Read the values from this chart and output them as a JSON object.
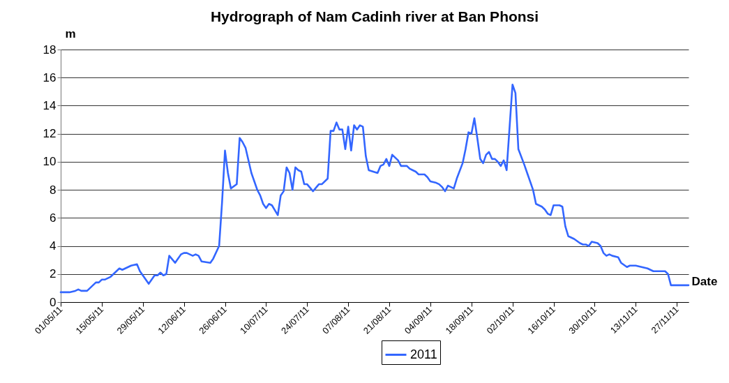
{
  "chart_data": {
    "type": "line",
    "title": "Hydrograph of Nam Cadinh river at Ban Phonsi",
    "ylabel": "m",
    "xlabel": "Date",
    "x": [
      "2011-05-01",
      "2011-05-04",
      "2011-05-06",
      "2011-05-07",
      "2011-05-08",
      "2011-05-10",
      "2011-05-11",
      "2011-05-13",
      "2011-05-14",
      "2011-05-15",
      "2011-05-16",
      "2011-05-18",
      "2011-05-19",
      "2011-05-21",
      "2011-05-22",
      "2011-05-23",
      "2011-05-25",
      "2011-05-27",
      "2011-05-28",
      "2011-05-30",
      "2011-05-31",
      "2011-06-02",
      "2011-06-03",
      "2011-06-04",
      "2011-06-05",
      "2011-06-06",
      "2011-06-07",
      "2011-06-09",
      "2011-06-11",
      "2011-06-12",
      "2011-06-13",
      "2011-06-15",
      "2011-06-16",
      "2011-06-17",
      "2011-06-18",
      "2011-06-21",
      "2011-06-22",
      "2011-06-24",
      "2011-06-25",
      "2011-06-26",
      "2011-06-27",
      "2011-06-28",
      "2011-06-30",
      "2011-07-01",
      "2011-07-02",
      "2011-07-03",
      "2011-07-05",
      "2011-07-06",
      "2011-07-07",
      "2011-07-08",
      "2011-07-09",
      "2011-07-10",
      "2011-07-11",
      "2011-07-12",
      "2011-07-14",
      "2011-07-15",
      "2011-07-16",
      "2011-07-17",
      "2011-07-18",
      "2011-07-19",
      "2011-07-20",
      "2011-07-21",
      "2011-07-22",
      "2011-07-23",
      "2011-07-24",
      "2011-07-26",
      "2011-07-28",
      "2011-07-29",
      "2011-07-31",
      "2011-08-01",
      "2011-08-02",
      "2011-08-03",
      "2011-08-04",
      "2011-08-05",
      "2011-08-06",
      "2011-08-07",
      "2011-08-08",
      "2011-08-09",
      "2011-08-10",
      "2011-08-11",
      "2011-08-12",
      "2011-08-13",
      "2011-08-14",
      "2011-08-17",
      "2011-08-18",
      "2011-08-19",
      "2011-08-20",
      "2011-08-21",
      "2011-08-22",
      "2011-08-23",
      "2011-08-24",
      "2011-08-25",
      "2011-08-26",
      "2011-08-27",
      "2011-08-28",
      "2011-08-29",
      "2011-08-30",
      "2011-08-31",
      "2011-09-02",
      "2011-09-03",
      "2011-09-04",
      "2011-09-06",
      "2011-09-07",
      "2011-09-08",
      "2011-09-09",
      "2011-09-10",
      "2011-09-11",
      "2011-09-12",
      "2011-09-13",
      "2011-09-15",
      "2011-09-16",
      "2011-09-17",
      "2011-09-18",
      "2011-09-19",
      "2011-09-20",
      "2011-09-21",
      "2011-09-22",
      "2011-09-23",
      "2011-09-24",
      "2011-09-25",
      "2011-09-26",
      "2011-09-27",
      "2011-09-28",
      "2011-09-29",
      "2011-09-30",
      "2011-10-02",
      "2011-10-03",
      "2011-10-04",
      "2011-10-06",
      "2011-10-07",
      "2011-10-09",
      "2011-10-10",
      "2011-10-12",
      "2011-10-13",
      "2011-10-14",
      "2011-10-15",
      "2011-10-16",
      "2011-10-18",
      "2011-10-19",
      "2011-10-20",
      "2011-10-21",
      "2011-10-23",
      "2011-10-25",
      "2011-10-26",
      "2011-10-27",
      "2011-10-28",
      "2011-10-29",
      "2011-10-31",
      "2011-11-01",
      "2011-11-02",
      "2011-11-03",
      "2011-11-04",
      "2011-11-05",
      "2011-11-07",
      "2011-11-08",
      "2011-11-10",
      "2011-11-11",
      "2011-11-13",
      "2011-11-15",
      "2011-11-17",
      "2011-11-19",
      "2011-11-21",
      "2011-11-23",
      "2011-11-24",
      "2011-11-25",
      "2011-11-27",
      "2011-12-01"
    ],
    "series": [
      {
        "name": "2011",
        "color": "#3366ff",
        "values": [
          0.7,
          0.7,
          0.8,
          0.9,
          0.8,
          0.8,
          1.0,
          1.4,
          1.4,
          1.6,
          1.6,
          1.8,
          2.0,
          2.4,
          2.3,
          2.4,
          2.6,
          2.7,
          2.2,
          1.6,
          1.3,
          1.9,
          1.9,
          2.1,
          1.9,
          2.0,
          3.3,
          2.8,
          3.4,
          3.5,
          3.5,
          3.3,
          3.4,
          3.3,
          2.9,
          2.8,
          3.1,
          4.0,
          7.1,
          10.8,
          9.2,
          8.1,
          8.4,
          11.7,
          11.4,
          11.0,
          9.2,
          8.6,
          8.0,
          7.6,
          7.0,
          6.7,
          7.0,
          6.9,
          6.2,
          7.6,
          7.9,
          9.6,
          9.2,
          8.0,
          9.6,
          9.4,
          9.3,
          8.4,
          8.4,
          7.9,
          8.4,
          8.4,
          8.8,
          12.2,
          12.2,
          12.8,
          12.3,
          12.3,
          10.9,
          12.5,
          10.8,
          12.6,
          12.3,
          12.6,
          12.5,
          10.4,
          9.4,
          9.2,
          9.7,
          9.8,
          10.2,
          9.7,
          10.5,
          10.3,
          10.1,
          9.7,
          9.7,
          9.7,
          9.5,
          9.4,
          9.3,
          9.1,
          9.1,
          8.9,
          8.6,
          8.5,
          8.4,
          8.2,
          7.9,
          8.3,
          8.2,
          8.1,
          8.8,
          9.9,
          10.9,
          12.1,
          12.0,
          13.1,
          11.7,
          10.2,
          9.9,
          10.5,
          10.7,
          10.2,
          10.2,
          10.0,
          9.7,
          10.1,
          9.4,
          15.5,
          14.9,
          10.9,
          9.8,
          9.2,
          8.0,
          7.0,
          6.8,
          6.6,
          6.3,
          6.2,
          6.9,
          6.9,
          6.8,
          5.4,
          4.7,
          4.5,
          4.2,
          4.1,
          4.1,
          4.0,
          4.3,
          4.2,
          4.0,
          3.5,
          3.3,
          3.4,
          3.3,
          3.2,
          2.8,
          2.5,
          2.6,
          2.6,
          2.5,
          2.4,
          2.2,
          2.2,
          2.2,
          2.0,
          1.2,
          1.2,
          1.2
        ]
      }
    ],
    "xlim": [
      "2011-05-01",
      "2011-12-01"
    ],
    "xticks": [
      {
        "value": "2011-05-01",
        "label": "01/05/11"
      },
      {
        "value": "2011-05-15",
        "label": "15/05/11"
      },
      {
        "value": "2011-05-29",
        "label": "29/05/11"
      },
      {
        "value": "2011-06-12",
        "label": "12/06/11"
      },
      {
        "value": "2011-06-26",
        "label": "26/06/11"
      },
      {
        "value": "2011-07-10",
        "label": "10/07/11"
      },
      {
        "value": "2011-07-24",
        "label": "24/07/11"
      },
      {
        "value": "2011-08-07",
        "label": "07/08/11"
      },
      {
        "value": "2011-08-21",
        "label": "21/08/11"
      },
      {
        "value": "2011-09-04",
        "label": "04/09/11"
      },
      {
        "value": "2011-09-18",
        "label": "18/09/11"
      },
      {
        "value": "2011-10-02",
        "label": "02/10/11"
      },
      {
        "value": "2011-10-16",
        "label": "16/10/11"
      },
      {
        "value": "2011-10-30",
        "label": "30/10/11"
      },
      {
        "value": "2011-11-13",
        "label": "13/11/11"
      },
      {
        "value": "2011-11-27",
        "label": "27/11/11"
      }
    ],
    "ylim": [
      0,
      18
    ],
    "yticks": [
      0,
      2,
      4,
      6,
      8,
      10,
      12,
      14,
      16,
      18
    ],
    "grid": "y",
    "legend": "bottom",
    "line_style": "solid"
  }
}
